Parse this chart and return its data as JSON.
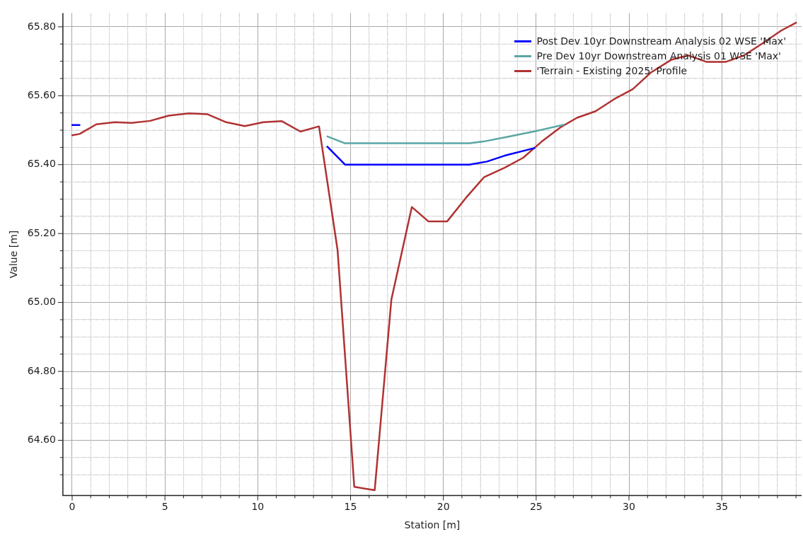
{
  "chart_data": {
    "type": "line",
    "xlabel": "Station [m]",
    "ylabel": "Value [m]",
    "xlim": [
      -0.5,
      39.3
    ],
    "ylim": [
      64.44,
      65.84
    ],
    "xticks": [
      0,
      {
        "value": 1,
        "label": null
      },
      {
        "value": 2,
        "label": null
      },
      {
        "value": 3,
        "label": null
      },
      {
        "value": 4,
        "label": null
      },
      5,
      {
        "value": 6,
        "label": null
      },
      {
        "value": 7,
        "label": null
      },
      {
        "value": 8,
        "label": null
      },
      {
        "value": 9,
        "label": null
      },
      10,
      {
        "value": 11,
        "label": null
      },
      {
        "value": 12,
        "label": null
      },
      {
        "value": 13,
        "label": null
      },
      {
        "value": 14,
        "label": null
      },
      15,
      {
        "value": 16,
        "label": null
      },
      {
        "value": 17,
        "label": null
      },
      {
        "value": 18,
        "label": null
      },
      {
        "value": 19,
        "label": null
      },
      20,
      {
        "value": 21,
        "label": null
      },
      {
        "value": 22,
        "label": null
      },
      {
        "value": 23,
        "label": null
      },
      {
        "value": 24,
        "label": null
      },
      25,
      {
        "value": 26,
        "label": null
      },
      {
        "value": 27,
        "label": null
      },
      {
        "value": 28,
        "label": null
      },
      {
        "value": 29,
        "label": null
      },
      30,
      {
        "value": 31,
        "label": null
      },
      {
        "value": 32,
        "label": null
      },
      {
        "value": 33,
        "label": null
      },
      {
        "value": 34,
        "label": null
      },
      35,
      {
        "value": 36,
        "label": null
      },
      {
        "value": 37,
        "label": null
      },
      {
        "value": 38,
        "label": null
      },
      {
        "value": 39,
        "label": null
      }
    ],
    "yticks": [
      {
        "value": 64.5,
        "label": null
      },
      {
        "value": 64.55,
        "label": null
      },
      {
        "value": 64.6,
        "label": "64.60"
      },
      {
        "value": 64.65,
        "label": null
      },
      {
        "value": 64.7,
        "label": null
      },
      {
        "value": 64.75,
        "label": null
      },
      {
        "value": 64.8,
        "label": "64.80"
      },
      {
        "value": 64.85,
        "label": null
      },
      {
        "value": 64.9,
        "label": null
      },
      {
        "value": 64.95,
        "label": null
      },
      {
        "value": 65.0,
        "label": "65.00"
      },
      {
        "value": 65.05,
        "label": null
      },
      {
        "value": 65.1,
        "label": null
      },
      {
        "value": 65.15,
        "label": null
      },
      {
        "value": 65.2,
        "label": "65.20"
      },
      {
        "value": 65.25,
        "label": null
      },
      {
        "value": 65.3,
        "label": null
      },
      {
        "value": 65.35,
        "label": null
      },
      {
        "value": 65.4,
        "label": "65.40"
      },
      {
        "value": 65.45,
        "label": null
      },
      {
        "value": 65.5,
        "label": null
      },
      {
        "value": 65.55,
        "label": null
      },
      {
        "value": 65.6,
        "label": "65.60"
      },
      {
        "value": 65.65,
        "label": null
      },
      {
        "value": 65.7,
        "label": null
      },
      {
        "value": 65.75,
        "label": null
      },
      {
        "value": 65.8,
        "label": "65.80"
      }
    ],
    "grid": true,
    "legend": "top right",
    "marker": "none",
    "line_style": "solid",
    "series": [
      {
        "name": "Post Dev 10yr Downstream Analysis 02 WSE 'Max'",
        "color": "#0000ff",
        "x": [
          0,
          0.4,
          0.5,
          13.75,
          14.7,
          21.4,
          22.35,
          23.3,
          24.9
        ],
        "values": [
          65.515,
          65.515,
          null,
          65.452,
          65.4,
          65.4,
          65.409,
          65.426,
          65.448
        ]
      },
      {
        "name": "Pre Dev 10yr Downstream Analysis 01 WSE 'Max'",
        "color": "#5aa6a6",
        "x": [
          13.75,
          14.7,
          21.4,
          22.15,
          23.4,
          24.95,
          26.5
        ],
        "values": [
          65.482,
          65.462,
          65.462,
          65.467,
          65.48,
          65.497,
          65.516
        ]
      },
      {
        "name": "'Terrain - Existing 2025' Profile",
        "color": "#b03232",
        "x": [
          0,
          0.4,
          1.3,
          2.3,
          3.2,
          4.2,
          5.2,
          6.3,
          7.3,
          8.3,
          9.3,
          10.3,
          11.3,
          12.3,
          13.3,
          14.3,
          15.2,
          16.3,
          17.2,
          18.3,
          19.2,
          20.2,
          21.3,
          22.2,
          23.3,
          24.3,
          25.3,
          26.3,
          27.2,
          28.2,
          29.2,
          30.2,
          31.2,
          32.3,
          33.2,
          34.2,
          35.2,
          36.2,
          37.2,
          38.2,
          39.0
        ],
        "values": [
          65.485,
          65.489,
          65.517,
          65.523,
          65.521,
          65.527,
          65.542,
          65.549,
          65.546,
          65.523,
          65.512,
          65.523,
          65.526,
          65.496,
          65.511,
          65.152,
          64.465,
          64.455,
          65.009,
          65.277,
          65.235,
          65.235,
          65.309,
          65.364,
          65.391,
          65.42,
          65.467,
          65.508,
          65.536,
          65.555,
          65.59,
          65.619,
          65.668,
          65.705,
          65.717,
          65.698,
          65.698,
          65.717,
          65.752,
          65.789,
          65.812
        ]
      }
    ]
  }
}
